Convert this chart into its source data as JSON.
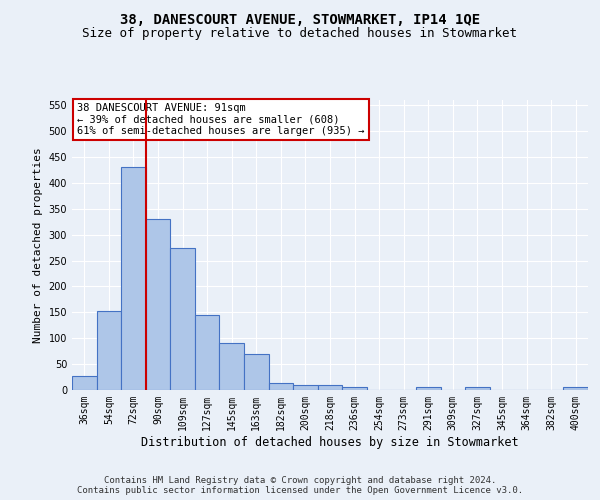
{
  "title": "38, DANESCOURT AVENUE, STOWMARKET, IP14 1QE",
  "subtitle": "Size of property relative to detached houses in Stowmarket",
  "xlabel": "Distribution of detached houses by size in Stowmarket",
  "ylabel": "Number of detached properties",
  "footer_line1": "Contains HM Land Registry data © Crown copyright and database right 2024.",
  "footer_line2": "Contains public sector information licensed under the Open Government Licence v3.0.",
  "categories": [
    "36sqm",
    "54sqm",
    "72sqm",
    "90sqm",
    "109sqm",
    "127sqm",
    "145sqm",
    "163sqm",
    "182sqm",
    "200sqm",
    "218sqm",
    "236sqm",
    "254sqm",
    "273sqm",
    "291sqm",
    "309sqm",
    "327sqm",
    "345sqm",
    "364sqm",
    "382sqm",
    "400sqm"
  ],
  "values": [
    28,
    153,
    430,
    330,
    275,
    145,
    90,
    70,
    13,
    10,
    10,
    6,
    0,
    0,
    5,
    0,
    5,
    0,
    0,
    0,
    5
  ],
  "bar_color": "#aec6e8",
  "bar_edge_color": "#4472c4",
  "vline_index": 2.5,
  "vline_color": "#cc0000",
  "annotation_text": "38 DANESCOURT AVENUE: 91sqm\n← 39% of detached houses are smaller (608)\n61% of semi-detached houses are larger (935) →",
  "annotation_box_color": "#cc0000",
  "annotation_text_color": "#000000",
  "ylim": [
    0,
    560
  ],
  "yticks": [
    0,
    50,
    100,
    150,
    200,
    250,
    300,
    350,
    400,
    450,
    500,
    550
  ],
  "background_color": "#eaf0f8",
  "plot_bg_color": "#eaf0f8",
  "grid_color": "#ffffff",
  "title_fontsize": 10,
  "subtitle_fontsize": 9,
  "footer_fontsize": 6.5,
  "ylabel_fontsize": 8,
  "xlabel_fontsize": 8.5,
  "tick_fontsize": 7,
  "annot_fontsize": 7.5
}
